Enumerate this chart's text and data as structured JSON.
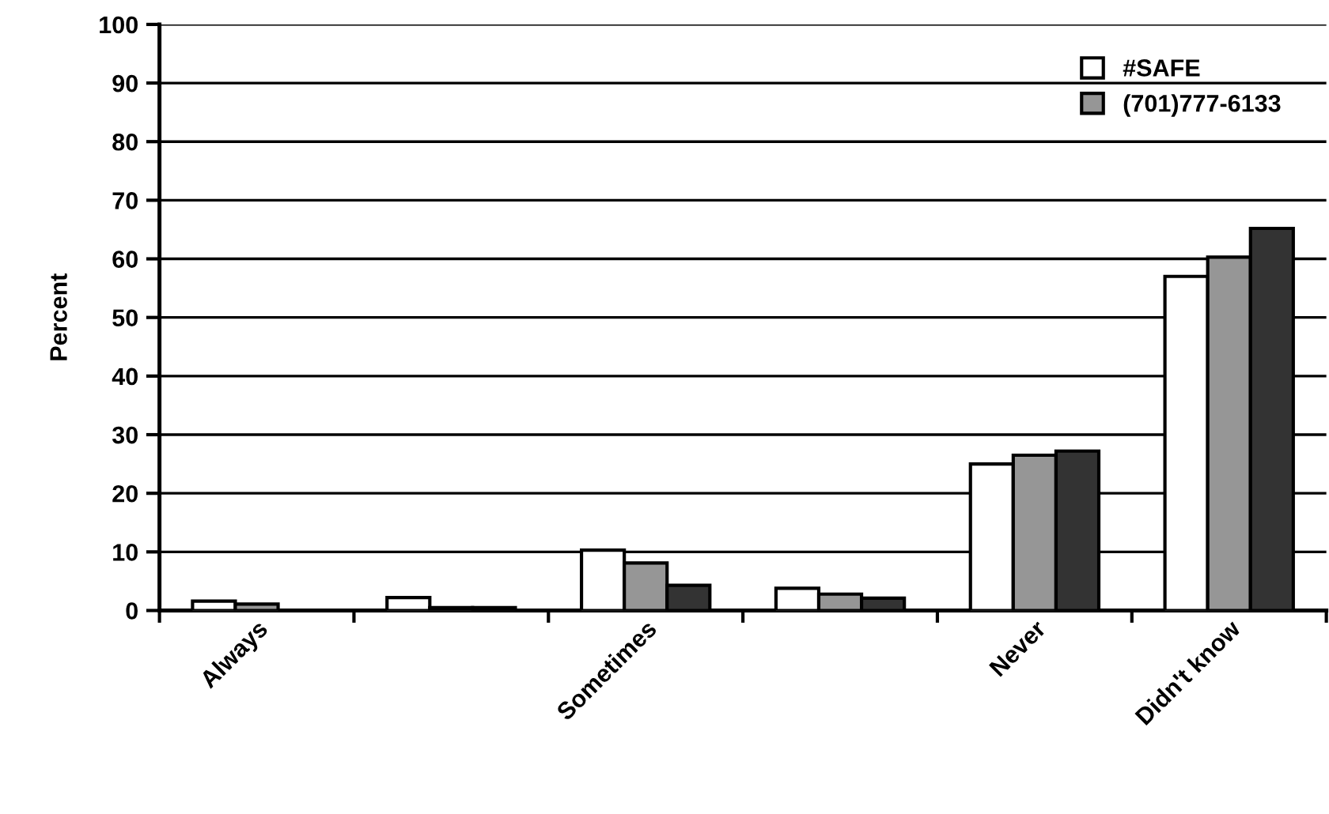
{
  "chart_data": {
    "type": "bar",
    "ylabel": "Percent",
    "categories": [
      "Always",
      null,
      "Sometimes",
      null,
      "Never",
      "Didn't know"
    ],
    "series": [
      {
        "name": "#SAFE",
        "color": "#ffffff",
        "values": [
          1.6,
          2.2,
          10.3,
          3.8,
          25,
          57
        ]
      },
      {
        "name": "(701)777-6133",
        "color": "#969696",
        "values": [
          1.1,
          0.5,
          8.1,
          2.8,
          26.5,
          60.3
        ]
      },
      {
        "color": "#333333",
        "values": [
          null,
          0.5,
          4.3,
          2.1,
          27.2,
          65.2
        ]
      }
    ],
    "ylim": [
      0,
      100
    ],
    "yticks": [
      0,
      10,
      20,
      30,
      40,
      50,
      60,
      70,
      80,
      90,
      100
    ],
    "grid": "y",
    "legend": "top right"
  }
}
